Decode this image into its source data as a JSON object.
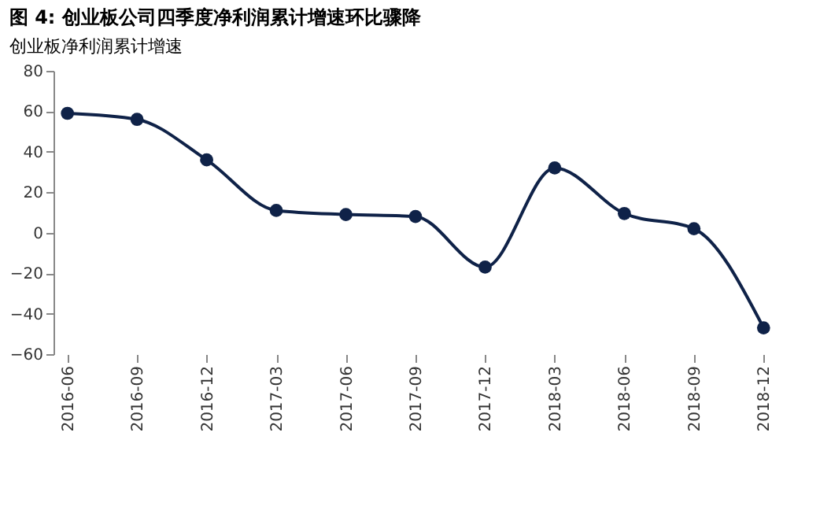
{
  "chart_data": {
    "type": "line",
    "title": "图 4: 创业板公司四季度净利润累计增速环比骤降",
    "subtitle": "创业板净利润累计增速",
    "categories": [
      "2016-06",
      "2016-09",
      "2016-12",
      "2017-03",
      "2017-06",
      "2017-09",
      "2017-12",
      "2018-03",
      "2018-06",
      "2018-09",
      "2018-12"
    ],
    "series": [
      {
        "color": "#0f2248",
        "values": [
          59,
          56,
          36,
          11,
          9,
          8,
          -17,
          32,
          9.5,
          2,
          -47
        ]
      }
    ],
    "ylim": [
      -60,
      80
    ],
    "yticks": [
      -60,
      -40,
      -20,
      0,
      20,
      40,
      60,
      80
    ],
    "grid": false,
    "legend": false,
    "marker": "circle",
    "line_style": "solid"
  }
}
